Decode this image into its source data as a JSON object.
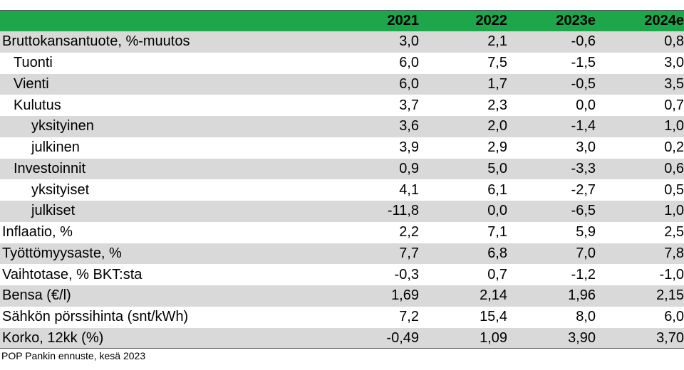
{
  "chart_data": {
    "type": "table",
    "columns": [
      "2021",
      "2022",
      "2023e",
      "2024e"
    ],
    "rows": [
      {
        "label": "Bruttokansantuote, %-muutos",
        "level": 0,
        "values": [
          "3,0",
          "2,1",
          "-0,6",
          "0,8"
        ]
      },
      {
        "label": "Tuonti",
        "level": 1,
        "values": [
          "6,0",
          "7,5",
          "-1,5",
          "3,0"
        ]
      },
      {
        "label": "Vienti",
        "level": 1,
        "values": [
          "6,0",
          "1,7",
          "-0,5",
          "3,5"
        ]
      },
      {
        "label": "Kulutus",
        "level": 1,
        "values": [
          "3,7",
          "2,3",
          "0,0",
          "0,7"
        ]
      },
      {
        "label": "yksityinen",
        "level": 2,
        "values": [
          "3,6",
          "2,0",
          "-1,4",
          "1,0"
        ]
      },
      {
        "label": "julkinen",
        "level": 2,
        "values": [
          "3,9",
          "2,9",
          "3,0",
          "0,2"
        ]
      },
      {
        "label": "Investoinnit",
        "level": 1,
        "values": [
          "0,9",
          "5,0",
          "-3,3",
          "0,6"
        ]
      },
      {
        "label": "yksityiset",
        "level": 2,
        "values": [
          "4,1",
          "6,1",
          "-2,7",
          "0,5"
        ]
      },
      {
        "label": "julkiset",
        "level": 2,
        "values": [
          "-11,8",
          "0,0",
          "-6,5",
          "1,0"
        ]
      },
      {
        "label": "Inflaatio, %",
        "level": 0,
        "values": [
          "2,2",
          "7,1",
          "5,9",
          "2,5"
        ]
      },
      {
        "label": "Työttömyysaste, %",
        "level": 0,
        "values": [
          "7,7",
          "6,8",
          "7,0",
          "7,8"
        ]
      },
      {
        "label": "Vaihtotase, % BKT:sta",
        "level": 0,
        "values": [
          "-0,3",
          "0,7",
          "-1,2",
          "-1,0"
        ]
      },
      {
        "label": "Bensa (€/l)",
        "level": 0,
        "values": [
          "1,69",
          "2,14",
          "1,96",
          "2,15"
        ]
      },
      {
        "label": "Sähkön pörssihinta (snt/kWh)",
        "level": 0,
        "values": [
          "7,2",
          "15,4",
          "8,0",
          "6,0"
        ]
      },
      {
        "label": "Korko, 12kk (%)",
        "level": 0,
        "values": [
          "-0,49",
          "1,09",
          "3,90",
          "3,70"
        ]
      }
    ],
    "source": "POP Pankin ennuste, kesä 2023",
    "colors": {
      "header": "#1ea64a",
      "shade": "#d9d9d9"
    }
  }
}
